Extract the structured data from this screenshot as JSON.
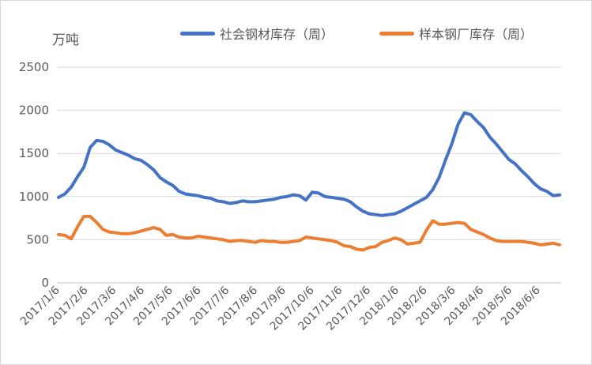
{
  "chart_data": {
    "type": "line",
    "title": "",
    "unit": "万吨",
    "ylim": [
      0,
      2500
    ],
    "yticks": [
      0,
      500,
      1000,
      1500,
      2000,
      2500
    ],
    "x_tick_labels": [
      "2017/1/6",
      "2017/2/6",
      "2017/3/6",
      "2017/4/6",
      "2017/5/6",
      "2017/6/6",
      "2017/7/6",
      "2017/8/6",
      "2017/9/6",
      "2017/10/6",
      "2017/11/6",
      "2017/12/6",
      "2018/1/6",
      "2018/2/6",
      "2018/3/6",
      "2018/4/6",
      "2018/5/6",
      "2018/6/6"
    ],
    "grid": "horizontal",
    "legend_position": "top",
    "series": [
      {
        "name": "社会钢材库存（周）",
        "color": "#4472C4",
        "values": [
          990,
          1030,
          1110,
          1230,
          1340,
          1570,
          1650,
          1640,
          1600,
          1540,
          1510,
          1480,
          1440,
          1420,
          1370,
          1310,
          1220,
          1170,
          1130,
          1060,
          1030,
          1020,
          1010,
          990,
          980,
          950,
          940,
          920,
          930,
          950,
          940,
          940,
          950,
          960,
          970,
          990,
          1000,
          1020,
          1010,
          960,
          1050,
          1040,
          1000,
          990,
          980,
          970,
          940,
          880,
          830,
          800,
          790,
          780,
          790,
          800,
          830,
          870,
          910,
          950,
          990,
          1080,
          1220,
          1420,
          1610,
          1840,
          1970,
          1950,
          1870,
          1800,
          1690,
          1610,
          1520,
          1430,
          1380,
          1300,
          1230,
          1150,
          1090,
          1060,
          1010,
          1020
        ]
      },
      {
        "name": "样本钢厂库存（周）",
        "color": "#ED7D31",
        "values": [
          560,
          550,
          510,
          650,
          770,
          770,
          700,
          620,
          590,
          580,
          570,
          570,
          580,
          600,
          620,
          640,
          620,
          550,
          560,
          530,
          520,
          520,
          540,
          530,
          520,
          510,
          500,
          480,
          490,
          490,
          480,
          470,
          490,
          480,
          480,
          470,
          470,
          480,
          490,
          530,
          520,
          510,
          500,
          490,
          470,
          430,
          420,
          390,
          380,
          410,
          420,
          470,
          490,
          520,
          500,
          450,
          460,
          470,
          610,
          720,
          680,
          680,
          690,
          700,
          690,
          620,
          590,
          560,
          520,
          490,
          480,
          480,
          480,
          480,
          470,
          460,
          440,
          450,
          460,
          440
        ]
      }
    ]
  }
}
